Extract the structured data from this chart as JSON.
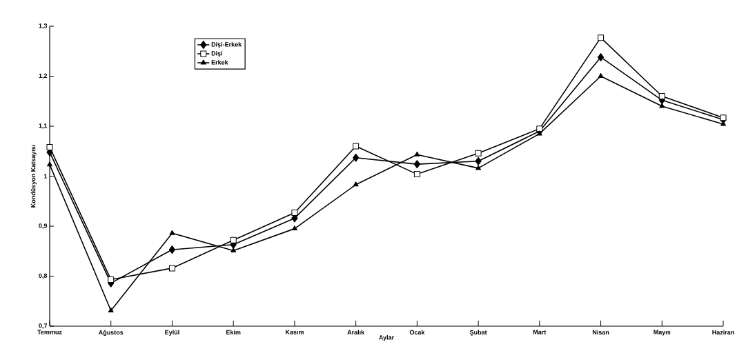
{
  "chart_data": {
    "type": "line",
    "xlabel": "Aylar",
    "ylabel": "Kondüsyon Katsayısı",
    "categories": [
      "Temmuz",
      "Ağustos",
      "Eylül",
      "Ekim",
      "Kasım",
      "Aralık",
      "Ocak",
      "Şubat",
      "Mart",
      "Nisan",
      "Mayıs",
      "Haziran"
    ],
    "series": [
      {
        "name": "Dişi-Erkek",
        "color": "#000000",
        "marker": "diamond",
        "values": [
          1.048,
          0.786,
          0.853,
          0.863,
          0.916,
          1.037,
          1.024,
          1.03,
          1.09,
          1.238,
          1.152,
          1.113
        ]
      },
      {
        "name": "Dişi",
        "color": "#000000",
        "marker": "square",
        "values": [
          1.058,
          0.793,
          0.816,
          0.872,
          0.927,
          1.06,
          1.004,
          1.046,
          1.095,
          1.277,
          1.16,
          1.117
        ]
      },
      {
        "name": "Erkek",
        "color": "#000000",
        "marker": "triangle",
        "values": [
          1.023,
          0.731,
          0.886,
          0.851,
          0.895,
          0.983,
          1.043,
          1.016,
          1.085,
          1.2,
          1.14,
          1.104
        ]
      }
    ],
    "ylim": [
      0.7,
      1.3
    ],
    "yticks": [
      {
        "value": 0.7,
        "label": "0,7"
      },
      {
        "value": 0.8,
        "label": "0,8"
      },
      {
        "value": 0.9,
        "label": "0,9"
      },
      1,
      {
        "value": 1.1,
        "label": "1,1"
      },
      {
        "value": 1.2,
        "label": "1,2"
      },
      {
        "value": 1.3,
        "label": "1,3"
      }
    ],
    "grid": false,
    "legend": "top left",
    "line_style": "solid"
  }
}
